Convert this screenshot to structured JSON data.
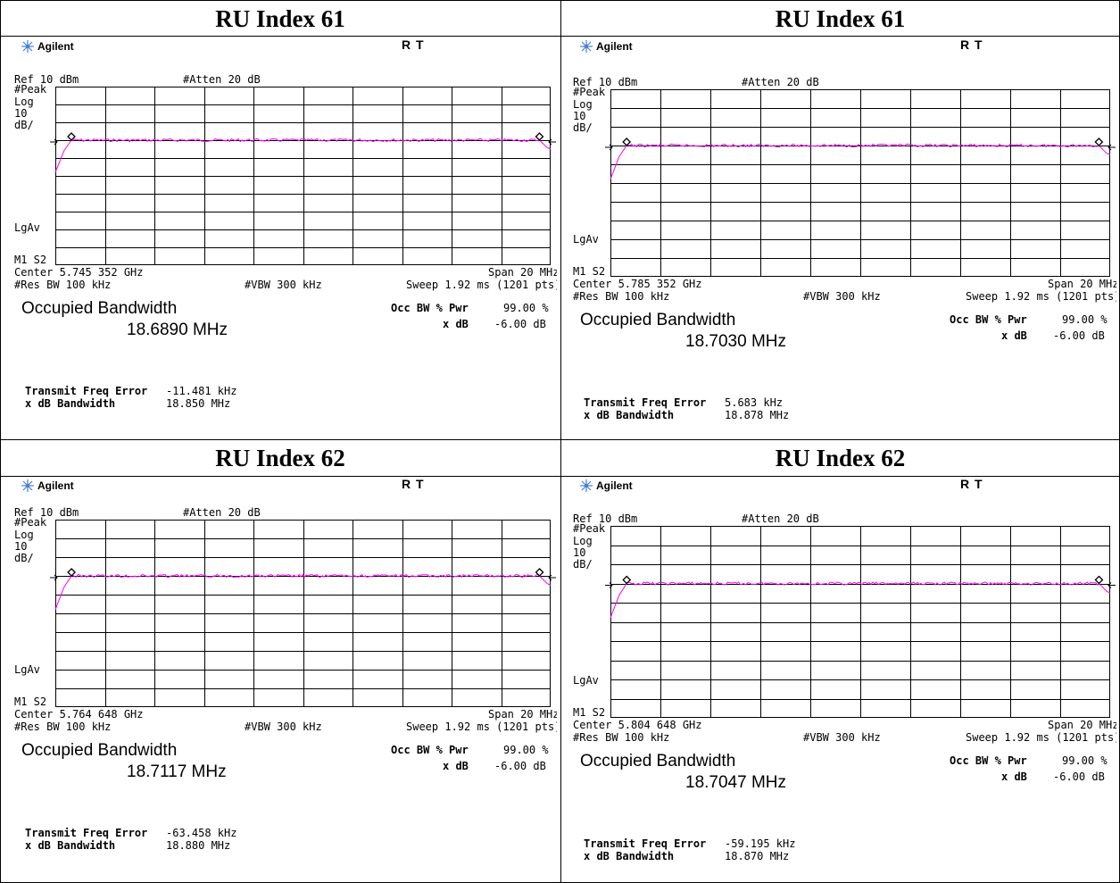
{
  "panels": [
    {
      "title": "RU Index 61",
      "brand": "Agilent",
      "status": "R  T",
      "ref": "Ref 10 dBm",
      "atten": "#Atten 20 dB",
      "side_labels": [
        "#Peak",
        "Log",
        "10",
        "dB/"
      ],
      "lgav": "LgAv",
      "m1s2": "M1  S2",
      "center": "Center 5.745 352 GHz",
      "span": "Span 20 MHz",
      "res_bw": "#Res BW 100 kHz",
      "vbw": "#VBW 300 kHz",
      "sweep": "Sweep 1.92 ms (1201 pts)",
      "obw_title": "Occupied Bandwidth",
      "obw_value": "18.6890 MHz",
      "occ_bw_label": "Occ BW % Pwr",
      "occ_bw_value": "99.00 %",
      "xdb_label": "x dB",
      "xdb_value": "-6.00 dB",
      "tfe_label": "Transmit Freq Error",
      "tfe_value": "-11.481 kHz",
      "xdbbw_label": "x dB Bandwidth",
      "xdbbw_value": "18.850 MHz"
    },
    {
      "title": "RU Index 61",
      "brand": "Agilent",
      "status": "R  T",
      "ref": "Ref 10 dBm",
      "atten": "#Atten 20 dB",
      "side_labels": [
        "#Peak",
        "Log",
        "10",
        "dB/"
      ],
      "lgav": "LgAv",
      "m1s2": "M1  S2",
      "center": "Center 5.785 352 GHz",
      "span": "Span 20 MHz",
      "res_bw": "#Res BW 100 kHz",
      "vbw": "#VBW 300 kHz",
      "sweep": "Sweep 1.92 ms (1201 pts)",
      "obw_title": "Occupied Bandwidth",
      "obw_value": "18.7030 MHz",
      "occ_bw_label": "Occ BW % Pwr",
      "occ_bw_value": "99.00 %",
      "xdb_label": "x dB",
      "xdb_value": "-6.00 dB",
      "tfe_label": "Transmit Freq Error",
      "tfe_value": "5.683 kHz",
      "xdbbw_label": "x dB Bandwidth",
      "xdbbw_value": "18.878 MHz"
    },
    {
      "title": "RU Index 62",
      "brand": "Agilent",
      "status": "R  T",
      "ref": "Ref 10 dBm",
      "atten": "#Atten 20 dB",
      "side_labels": [
        "#Peak",
        "Log",
        "10",
        "dB/"
      ],
      "lgav": "LgAv",
      "m1s2": "M1  S2",
      "center": "Center 5.764 648 GHz",
      "span": "Span 20 MHz",
      "res_bw": "#Res BW 100 kHz",
      "vbw": "#VBW 300 kHz",
      "sweep": "Sweep 1.92 ms (1201 pts)",
      "obw_title": "Occupied Bandwidth",
      "obw_value": "18.7117 MHz",
      "occ_bw_label": "Occ BW % Pwr",
      "occ_bw_value": "99.00 %",
      "xdb_label": "x dB",
      "xdb_value": "-6.00 dB",
      "tfe_label": "Transmit Freq Error",
      "tfe_value": "-63.458 kHz",
      "xdbbw_label": "x dB Bandwidth",
      "xdbbw_value": "18.880 MHz"
    },
    {
      "title": "RU Index 62",
      "brand": "Agilent",
      "status": "R  T",
      "ref": "Ref 10 dBm",
      "atten": "#Atten 20 dB",
      "side_labels": [
        "#Peak",
        "Log",
        "10",
        "dB/"
      ],
      "lgav": "LgAv",
      "m1s2": "M1  S2",
      "center": "Center 5.804 648 GHz",
      "span": "Span 20 MHz",
      "res_bw": "#Res BW 100 kHz",
      "vbw": "#VBW 300 kHz",
      "sweep": "Sweep 1.92 ms (1201 pts)",
      "obw_title": "Occupied Bandwidth",
      "obw_value": "18.7047 MHz",
      "occ_bw_label": "Occ BW % Pwr",
      "occ_bw_value": "99.00 %",
      "xdb_label": "x dB",
      "xdb_value": "-6.00 dB",
      "tfe_label": "Transmit Freq Error",
      "tfe_value": "-59.195 kHz",
      "xdbbw_label": "x dB Bandwidth",
      "xdbbw_value": "18.870 MHz"
    }
  ],
  "colors": {
    "trace": "#ff00ff",
    "grid": "#000000",
    "border": "#000000",
    "logo": "#4a7fd6"
  },
  "chart_data": [
    {
      "type": "line",
      "title": "RU Index 61",
      "xlabel": "",
      "ylabel": "",
      "xlim": [
        5.735352,
        5.755352
      ],
      "ylim": [
        -90,
        10
      ],
      "grid": true,
      "series": [
        {
          "x": [
            5.735352,
            5.7357,
            5.736,
            5.7364,
            5.7545,
            5.7549,
            5.7552,
            5.755352
          ],
          "values": [
            -38,
            -26,
            -20,
            -20,
            -20,
            -20,
            -24,
            -25
          ]
        }
      ]
    },
    {
      "type": "line",
      "title": "RU Index 61",
      "xlabel": "",
      "ylabel": "",
      "xlim": [
        5.775352,
        5.795352
      ],
      "ylim": [
        -90,
        10
      ],
      "grid": true,
      "series": [
        {
          "x": [
            5.775352,
            5.7757,
            5.776,
            5.7764,
            5.7945,
            5.7949,
            5.7952,
            5.795352
          ],
          "values": [
            -38,
            -26,
            -20,
            -20,
            -20,
            -20,
            -24,
            -25
          ]
        }
      ]
    },
    {
      "type": "line",
      "title": "RU Index 62",
      "xlabel": "",
      "ylabel": "",
      "xlim": [
        5.754648,
        5.774648
      ],
      "ylim": [
        -90,
        10
      ],
      "grid": true,
      "series": [
        {
          "x": [
            5.754648,
            5.755,
            5.7553,
            5.7557,
            5.7738,
            5.7742,
            5.7745,
            5.774648
          ],
          "values": [
            -38,
            -26,
            -20,
            -20,
            -20,
            -20,
            -24,
            -25
          ]
        }
      ]
    },
    {
      "type": "line",
      "title": "RU Index 62",
      "xlabel": "",
      "ylabel": "",
      "xlim": [
        5.794648,
        5.814648
      ],
      "ylim": [
        -90,
        10
      ],
      "grid": true,
      "series": [
        {
          "x": [
            5.794648,
            5.795,
            5.7953,
            5.7957,
            5.8138,
            5.8142,
            5.8145,
            5.814648
          ],
          "values": [
            -38,
            -26,
            -20,
            -20,
            -20,
            -20,
            -24,
            -25
          ]
        }
      ]
    }
  ]
}
